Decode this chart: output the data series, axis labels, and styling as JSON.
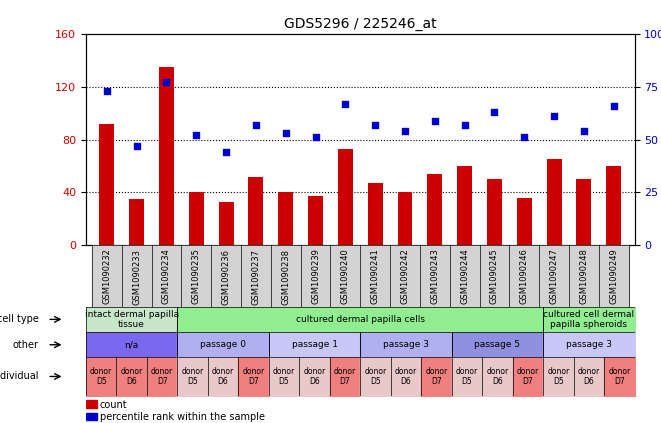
{
  "title": "GDS5296 / 225246_at",
  "samples": [
    "GSM1090232",
    "GSM1090233",
    "GSM1090234",
    "GSM1090235",
    "GSM1090236",
    "GSM1090237",
    "GSM1090238",
    "GSM1090239",
    "GSM1090240",
    "GSM1090241",
    "GSM1090242",
    "GSM1090243",
    "GSM1090244",
    "GSM1090245",
    "GSM1090246",
    "GSM1090247",
    "GSM1090248",
    "GSM1090249"
  ],
  "counts": [
    92,
    35,
    135,
    40,
    33,
    52,
    40,
    37,
    73,
    47,
    40,
    54,
    60,
    50,
    36,
    65,
    50,
    60
  ],
  "percentiles": [
    73,
    47,
    77,
    52,
    44,
    57,
    53,
    51,
    67,
    57,
    54,
    59,
    57,
    63,
    51,
    61,
    54,
    66
  ],
  "ylim_left": [
    0,
    160
  ],
  "ylim_right": [
    0,
    100
  ],
  "yticks_left": [
    0,
    40,
    80,
    120,
    160
  ],
  "yticks_right": [
    0,
    25,
    50,
    75,
    100
  ],
  "bar_color": "#cc0000",
  "dot_color": "#0000cc",
  "cell_type_row": {
    "groups": [
      {
        "label": "intact dermal papilla\ntissue",
        "start": 0,
        "end": 3,
        "color": "#c8e6c8"
      },
      {
        "label": "cultured dermal papilla cells",
        "start": 3,
        "end": 15,
        "color": "#90ee90"
      },
      {
        "label": "cultured cell dermal\npapilla spheroids",
        "start": 15,
        "end": 18,
        "color": "#90ee90"
      }
    ]
  },
  "other_row": {
    "groups": [
      {
        "label": "n/a",
        "start": 0,
        "end": 3,
        "color": "#7b68ee"
      },
      {
        "label": "passage 0",
        "start": 3,
        "end": 6,
        "color": "#b0b0f0"
      },
      {
        "label": "passage 1",
        "start": 6,
        "end": 9,
        "color": "#c8c8f8"
      },
      {
        "label": "passage 3",
        "start": 9,
        "end": 12,
        "color": "#b0b0f0"
      },
      {
        "label": "passage 5",
        "start": 12,
        "end": 15,
        "color": "#9090e0"
      },
      {
        "label": "passage 3",
        "start": 15,
        "end": 18,
        "color": "#c8c8f8"
      }
    ]
  },
  "individual_row": {
    "donors": [
      "donor\nD5",
      "donor\nD6",
      "donor\nD7",
      "donor\nD5",
      "donor\nD6",
      "donor\nD7",
      "donor\nD5",
      "donor\nD6",
      "donor\nD7",
      "donor\nD5",
      "donor\nD6",
      "donor\nD7",
      "donor\nD5",
      "donor\nD6",
      "donor\nD7",
      "donor\nD5",
      "donor\nD6",
      "donor\nD7"
    ],
    "colors": [
      "#f08080",
      "#f08080",
      "#f08080",
      "#e8c8c8",
      "#e8c8c8",
      "#f08080",
      "#e8c8c8",
      "#e8c8c8",
      "#f08080",
      "#e8c8c8",
      "#e8c8c8",
      "#f08080",
      "#e8c8c8",
      "#e8c8c8",
      "#f08080",
      "#e8c8c8",
      "#e8c8c8",
      "#f08080"
    ]
  },
  "row_labels": [
    "cell type",
    "other",
    "individual"
  ],
  "bg_color": "#ffffff",
  "grid_color": "#000000",
  "tick_bg": "#d3d3d3"
}
